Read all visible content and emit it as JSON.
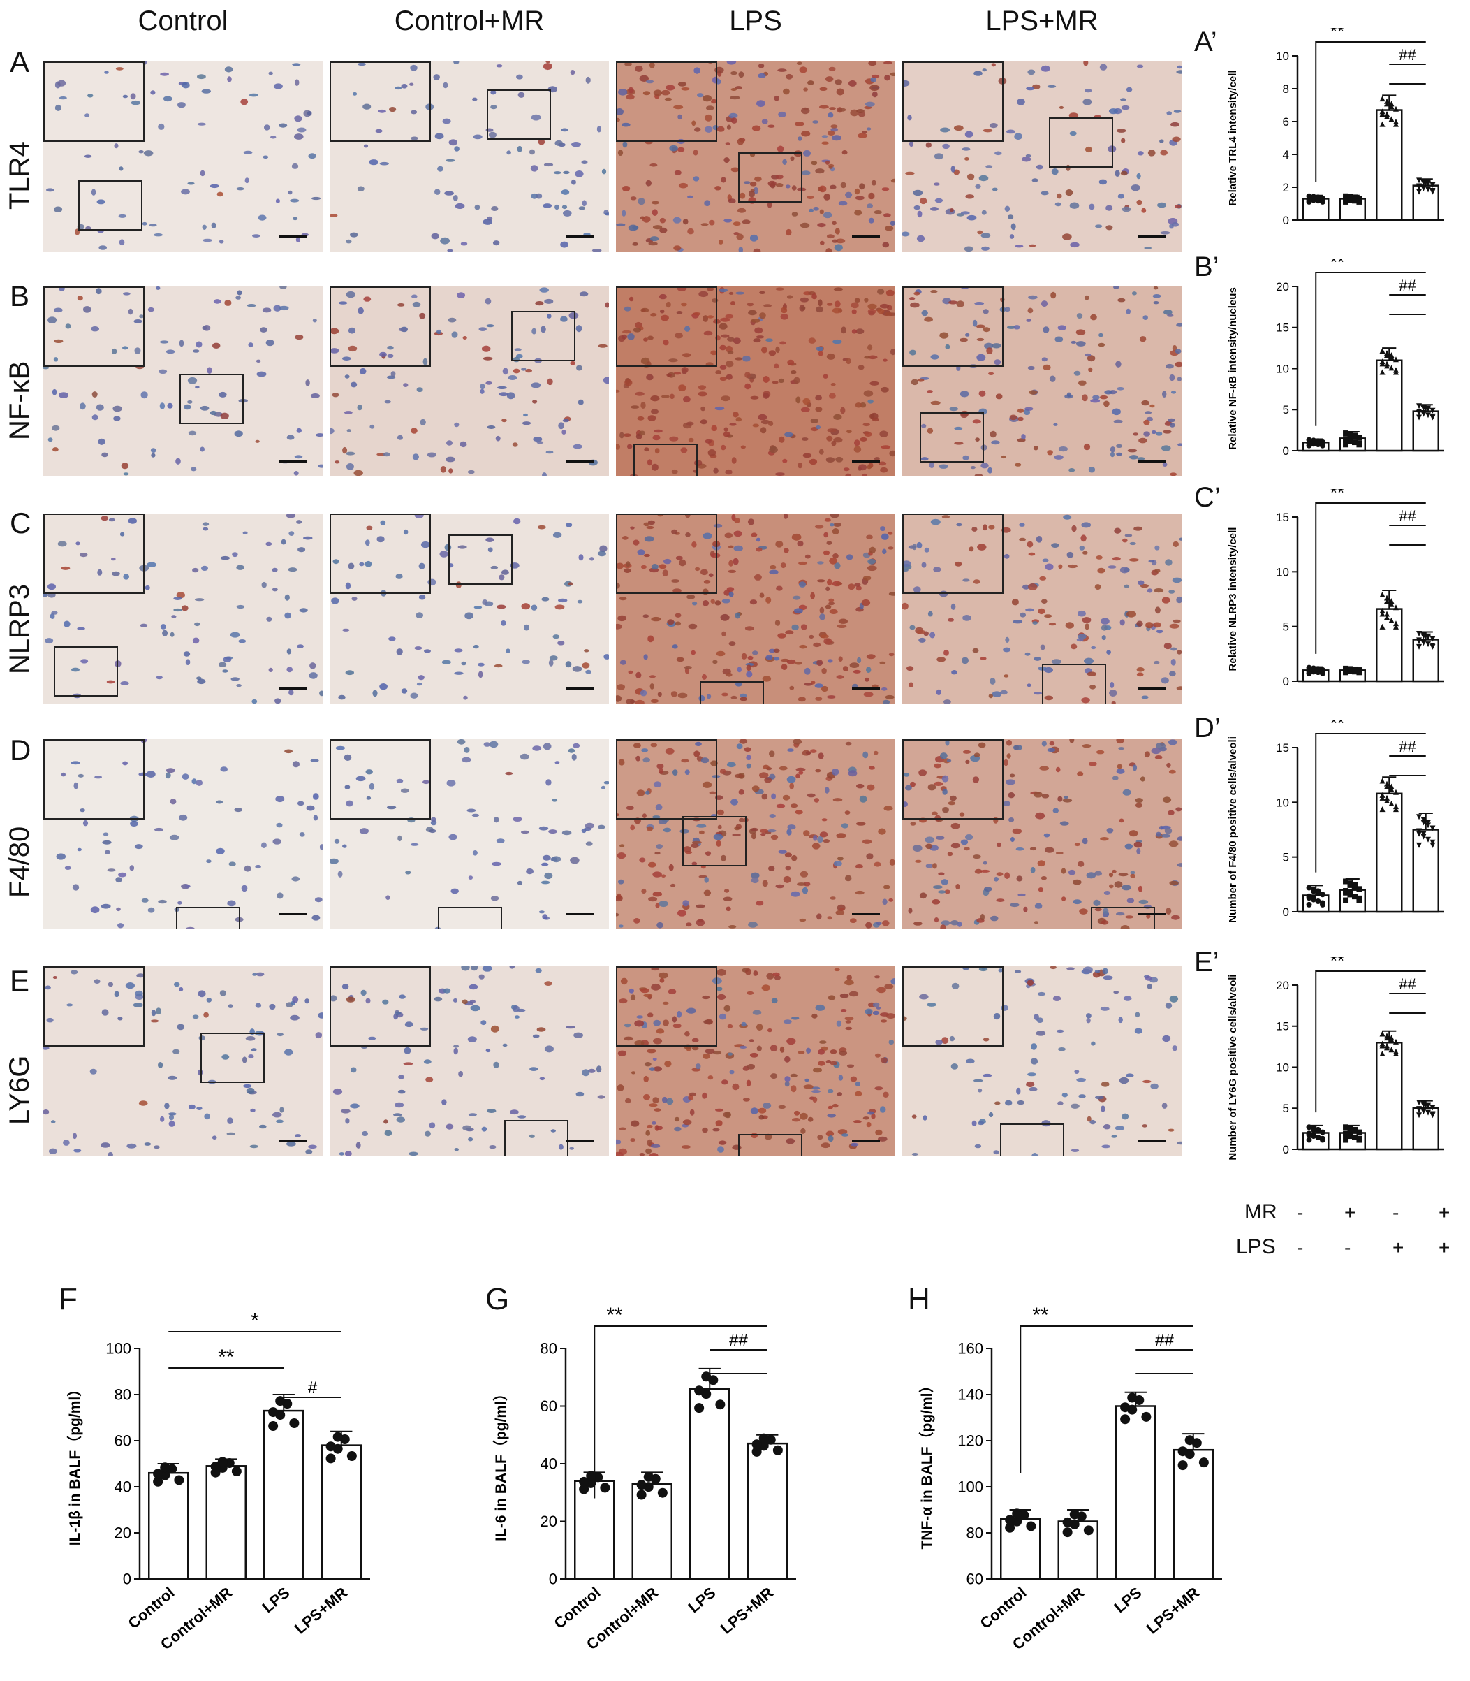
{
  "columns": [
    "Control",
    "Control+MR",
    "LPS",
    "LPS+MR"
  ],
  "rows": [
    {
      "letter": "A",
      "label": "TLR4"
    },
    {
      "letter": "B",
      "label": "NF-κB"
    },
    {
      "letter": "C",
      "label": "NLRP3"
    },
    {
      "letter": "D",
      "label": "F4/80"
    },
    {
      "letter": "E",
      "label": "LY6G"
    }
  ],
  "bottom_letters": [
    "F",
    "G",
    "H"
  ],
  "sig_double": "**",
  "sig_single": "*",
  "hash_double": "##",
  "hash_single": "#",
  "legend": {
    "mr_label": "MR",
    "lps_label": "LPS",
    "mr_signs": [
      "-",
      "+",
      "-",
      "+"
    ],
    "lps_signs": [
      "-",
      "-",
      "+",
      "+"
    ]
  },
  "stain_colors": {
    "control": "#f3ede6",
    "lps_brown": "#a5573d",
    "nuclei_blue": "#5a6fa8"
  },
  "chart_data": [
    {
      "type": "bar",
      "panel": "A'",
      "ylabel": "Relative TRL4 intensity/cell",
      "ylim": [
        0,
        10
      ],
      "yticks": [
        0,
        2,
        4,
        6,
        8,
        10
      ],
      "categories": [
        "Control",
        "Control+MR",
        "LPS",
        "LPS+MR"
      ],
      "values": [
        1.3,
        1.3,
        6.7,
        2.1
      ],
      "errors": [
        0.2,
        0.2,
        0.9,
        0.4
      ],
      "marker": "triangle"
    },
    {
      "type": "bar",
      "panel": "B'",
      "ylabel": "Relative NF-κB intensity/nucleus",
      "ylim": [
        0,
        20
      ],
      "yticks": [
        0,
        5,
        10,
        15,
        20
      ],
      "categories": [
        "Control",
        "Control+MR",
        "LPS",
        "LPS+MR"
      ],
      "values": [
        1.0,
        1.5,
        11.0,
        4.8
      ],
      "errors": [
        0.4,
        0.8,
        1.5,
        0.8
      ],
      "marker": "triangle"
    },
    {
      "type": "bar",
      "panel": "C'",
      "ylabel": "Relative NLRP3 intensity/cell",
      "ylim": [
        0,
        15
      ],
      "yticks": [
        0,
        5,
        10,
        15
      ],
      "categories": [
        "Control",
        "Control+MR",
        "LPS",
        "LPS+MR"
      ],
      "values": [
        1.0,
        1.0,
        6.6,
        3.8
      ],
      "errors": [
        0.3,
        0.2,
        1.7,
        0.7
      ],
      "marker": "triangle"
    },
    {
      "type": "bar",
      "panel": "D'",
      "ylabel": "Number of F4/80 positive cells/alveoli",
      "ylim": [
        0,
        15
      ],
      "yticks": [
        0,
        5,
        10,
        15
      ],
      "categories": [
        "Control",
        "Control+MR",
        "LPS",
        "LPS+MR"
      ],
      "values": [
        1.5,
        2.0,
        10.8,
        7.5
      ],
      "errors": [
        0.9,
        1.0,
        1.5,
        1.5
      ],
      "marker": "triangle"
    },
    {
      "type": "bar",
      "panel": "E'",
      "ylabel": "Number of LY6G positive cells/alveoli",
      "ylim": [
        0,
        20
      ],
      "yticks": [
        0,
        5,
        10,
        15,
        20
      ],
      "categories": [
        "Control",
        "Control+MR",
        "LPS",
        "LPS+MR"
      ],
      "values": [
        2.0,
        2.0,
        13.0,
        5.0
      ],
      "errors": [
        0.9,
        0.9,
        1.4,
        0.9
      ],
      "marker": "triangle"
    },
    {
      "type": "bar",
      "panel": "F",
      "ylabel": "IL-1β in BALF（pg/ml）",
      "ylim": [
        0,
        100
      ],
      "yticks": [
        0,
        20,
        40,
        60,
        80,
        100
      ],
      "categories": [
        "Control",
        "Control+MR",
        "LPS",
        "LPS+MR"
      ],
      "values": [
        46,
        49,
        73,
        58
      ],
      "errors": [
        4,
        3,
        7,
        6
      ],
      "marker": "hex"
    },
    {
      "type": "bar",
      "panel": "G",
      "ylabel": "IL-6 in BALF（pg/ml）",
      "ylim": [
        0,
        80
      ],
      "yticks": [
        0,
        20,
        40,
        60,
        80
      ],
      "categories": [
        "Control",
        "Control+MR",
        "LPS",
        "LPS+MR"
      ],
      "values": [
        34,
        33,
        66,
        47
      ],
      "errors": [
        3,
        4,
        7,
        3
      ],
      "marker": "hex"
    },
    {
      "type": "bar",
      "panel": "H",
      "ylabel": "TNF-α in BALF（pg/ml）",
      "ylim": [
        60,
        160
      ],
      "yticks": [
        60,
        80,
        100,
        120,
        140,
        160
      ],
      "categories": [
        "Control",
        "Control+MR",
        "LPS",
        "LPS+MR"
      ],
      "values": [
        86,
        85,
        135,
        116
      ],
      "errors": [
        4,
        5,
        6,
        7
      ],
      "marker": "hex"
    }
  ]
}
